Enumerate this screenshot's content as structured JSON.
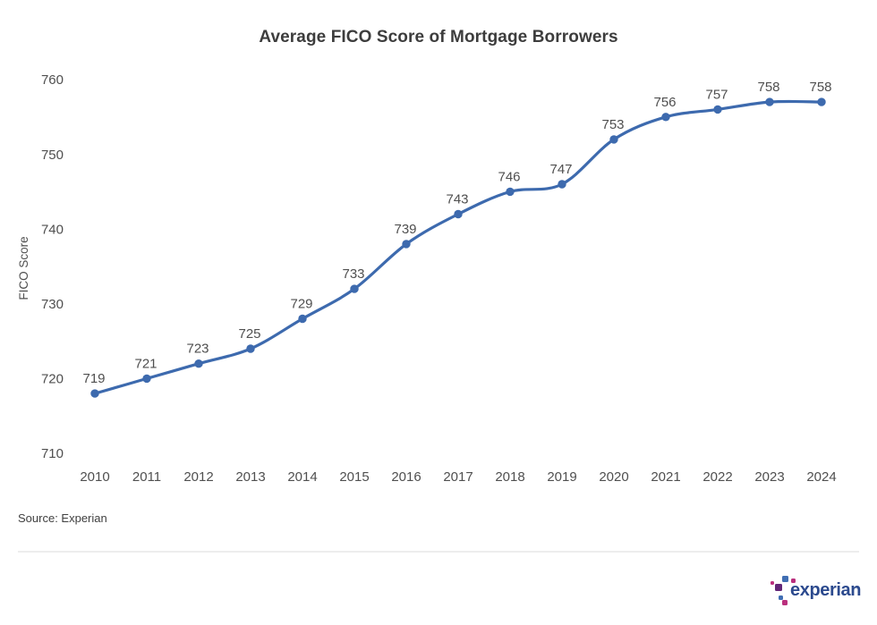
{
  "source_note": "Source: Experian",
  "logo": {
    "text": "experian",
    "trademark": "™"
  },
  "colors": {
    "line_blue": "#3d6aae",
    "tick_gray": "#4f4f4f",
    "title_gray": "#3d3d3d",
    "logo_navy": "#2c4a8e",
    "logo_blue": "#406EB3",
    "logo_purple": "#632678",
    "logo_magenta": "#BA2F7D",
    "divider_gray": "#ededed"
  },
  "chart_data": {
    "type": "line",
    "title": "Average FICO Score of Mortgage Borrowers",
    "categories": [
      "2010",
      "2011",
      "2012",
      "2013",
      "2014",
      "2015",
      "2016",
      "2017",
      "2018",
      "2019",
      "2020",
      "2021",
      "2022",
      "2023",
      "2024"
    ],
    "values": [
      719,
      721,
      723,
      725,
      729,
      733,
      739,
      743,
      746,
      747,
      753,
      756,
      757,
      758,
      758
    ],
    "series_name": "Average FICO Score",
    "xlabel": "",
    "ylabel": "FICO Score",
    "y_ticks": [
      760,
      750,
      740,
      730,
      720,
      710
    ],
    "ylim": [
      710,
      762
    ],
    "grid": false,
    "legend_position": "none",
    "data_labels": true
  }
}
